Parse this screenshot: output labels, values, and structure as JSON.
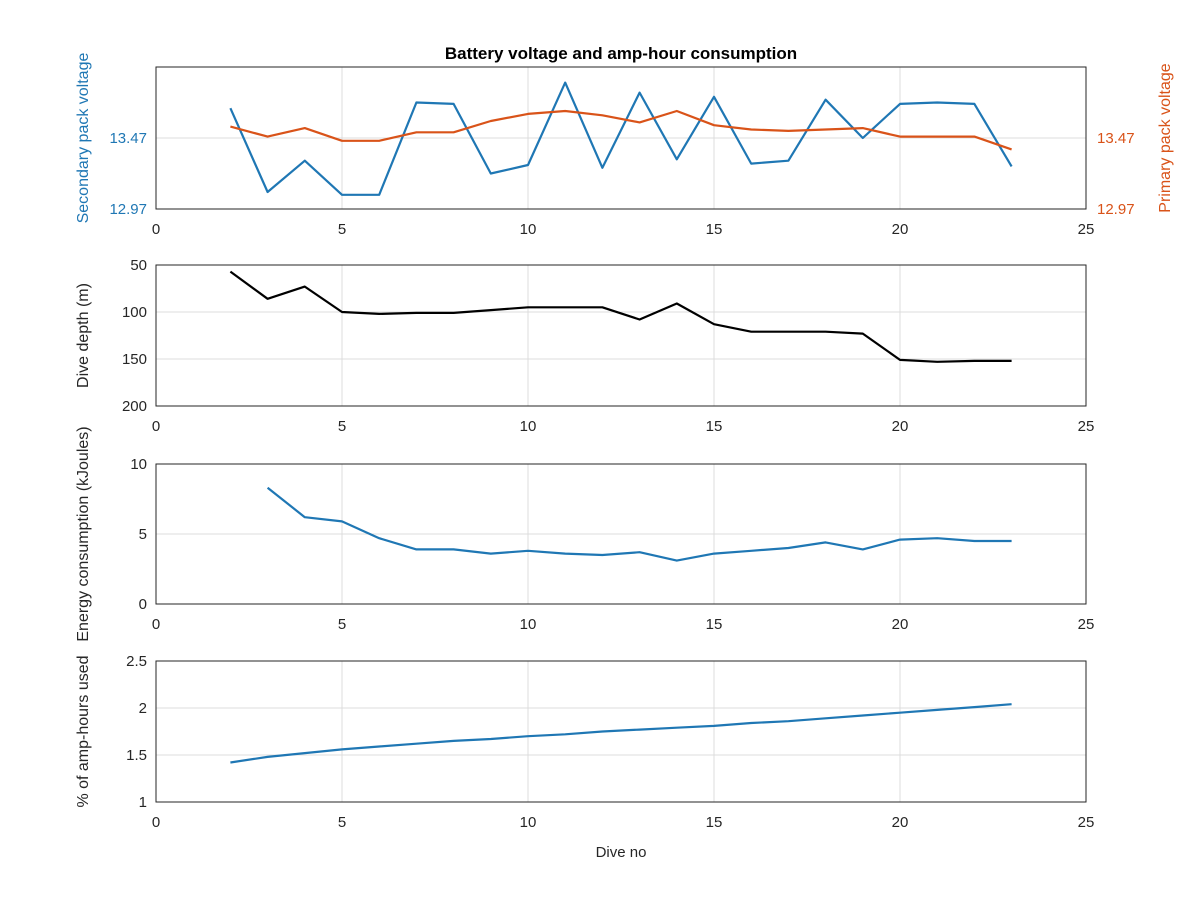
{
  "figure": {
    "title": "Battery voltage and amp-hour consumption",
    "xlabel": "Dive no"
  },
  "colors": {
    "secondary": "#1f77b4",
    "primary": "#d95319",
    "depth": "#000000",
    "grid": "#dcdcdc",
    "axes": "#262626"
  },
  "chart_data": [
    {
      "type": "line",
      "name": "voltage",
      "title": "Battery voltage and amp-hour consumption",
      "xlabel": "",
      "ylabel": "Secondary pack voltage",
      "ylabel_right": "Primary pack voltage",
      "xlim": [
        0,
        25
      ],
      "xticks": [
        0,
        5,
        10,
        15,
        20,
        25
      ],
      "ylim": [
        12.97,
        13.97
      ],
      "yticks": [
        12.97,
        13.47
      ],
      "ytick_labels": [
        "12.97",
        "13.47"
      ],
      "ylim_right": [
        12.97,
        13.97
      ],
      "yticks_right": [
        12.97,
        13.47
      ],
      "ytick_labels_right": [
        "12.97",
        "13.47"
      ],
      "grid": true,
      "series": [
        {
          "axis": "left",
          "x": [
            2,
            3,
            4,
            5,
            6,
            7,
            8,
            9,
            10,
            11,
            12,
            13,
            14,
            15,
            16,
            17,
            18,
            19,
            20,
            21,
            22,
            23
          ],
          "y": [
            13.68,
            13.09,
            13.31,
            13.07,
            13.07,
            13.72,
            13.71,
            13.22,
            13.28,
            13.86,
            13.26,
            13.79,
            13.32,
            13.76,
            13.29,
            13.31,
            13.74,
            13.47,
            13.71,
            13.72,
            13.71,
            13.27
          ]
        },
        {
          "axis": "right",
          "x": [
            2,
            3,
            4,
            5,
            6,
            7,
            8,
            9,
            10,
            11,
            12,
            13,
            14,
            15,
            16,
            17,
            18,
            19,
            20,
            21,
            22,
            23
          ],
          "y": [
            13.55,
            13.48,
            13.54,
            13.45,
            13.45,
            13.51,
            13.51,
            13.59,
            13.64,
            13.66,
            13.63,
            13.58,
            13.66,
            13.56,
            13.53,
            13.52,
            13.53,
            13.54,
            13.48,
            13.48,
            13.48,
            13.39
          ]
        }
      ]
    },
    {
      "type": "line",
      "name": "depth",
      "ylabel": "Dive depth (m)",
      "xlim": [
        0,
        25
      ],
      "xticks": [
        0,
        5,
        10,
        15,
        20,
        25
      ],
      "ylim": [
        50,
        200
      ],
      "y_reversed": true,
      "yticks": [
        50,
        100,
        150,
        200
      ],
      "ytick_labels": [
        "50",
        "100",
        "150",
        "200"
      ],
      "grid": true,
      "series": [
        {
          "x": [
            2,
            3,
            4,
            5,
            6,
            7,
            8,
            9,
            10,
            11,
            12,
            13,
            14,
            15,
            16,
            17,
            18,
            19,
            20,
            21,
            22,
            23
          ],
          "y": [
            57,
            86,
            73,
            100,
            102,
            101,
            101,
            98,
            95,
            95,
            95,
            108,
            91,
            113,
            121,
            121,
            121,
            123,
            151,
            153,
            152,
            152
          ]
        }
      ]
    },
    {
      "type": "line",
      "name": "energy",
      "ylabel": "Energy consumption (kJoules)",
      "xlim": [
        0,
        25
      ],
      "xticks": [
        0,
        5,
        10,
        15,
        20,
        25
      ],
      "ylim": [
        0,
        10
      ],
      "yticks": [
        0,
        5,
        10
      ],
      "ytick_labels": [
        "0",
        "5",
        "10"
      ],
      "grid": true,
      "series": [
        {
          "x": [
            3,
            4,
            5,
            6,
            7,
            8,
            9,
            10,
            11,
            12,
            13,
            14,
            15,
            16,
            17,
            18,
            19,
            20,
            21,
            22,
            23
          ],
          "y": [
            8.3,
            6.2,
            5.9,
            4.7,
            3.9,
            3.9,
            3.6,
            3.8,
            3.6,
            3.5,
            3.7,
            3.1,
            3.6,
            3.8,
            4.0,
            4.4,
            3.9,
            4.6,
            4.7,
            4.5,
            4.5
          ]
        }
      ]
    },
    {
      "type": "line",
      "name": "amphours",
      "ylabel": "% of amp-hours used",
      "xlabel": "Dive no",
      "xlim": [
        0,
        25
      ],
      "xticks": [
        0,
        5,
        10,
        15,
        20,
        25
      ],
      "ylim": [
        1,
        2.5
      ],
      "yticks": [
        1,
        1.5,
        2,
        2.5
      ],
      "ytick_labels": [
        "1",
        "1.5",
        "2",
        "2.5"
      ],
      "grid": true,
      "series": [
        {
          "x": [
            2,
            3,
            4,
            5,
            6,
            7,
            8,
            9,
            10,
            11,
            12,
            13,
            14,
            15,
            16,
            17,
            18,
            19,
            20,
            21,
            22,
            23
          ],
          "y": [
            1.42,
            1.48,
            1.52,
            1.56,
            1.59,
            1.62,
            1.65,
            1.67,
            1.7,
            1.72,
            1.75,
            1.77,
            1.79,
            1.81,
            1.84,
            1.86,
            1.89,
            1.92,
            1.95,
            1.98,
            2.01,
            2.04
          ]
        }
      ]
    }
  ]
}
